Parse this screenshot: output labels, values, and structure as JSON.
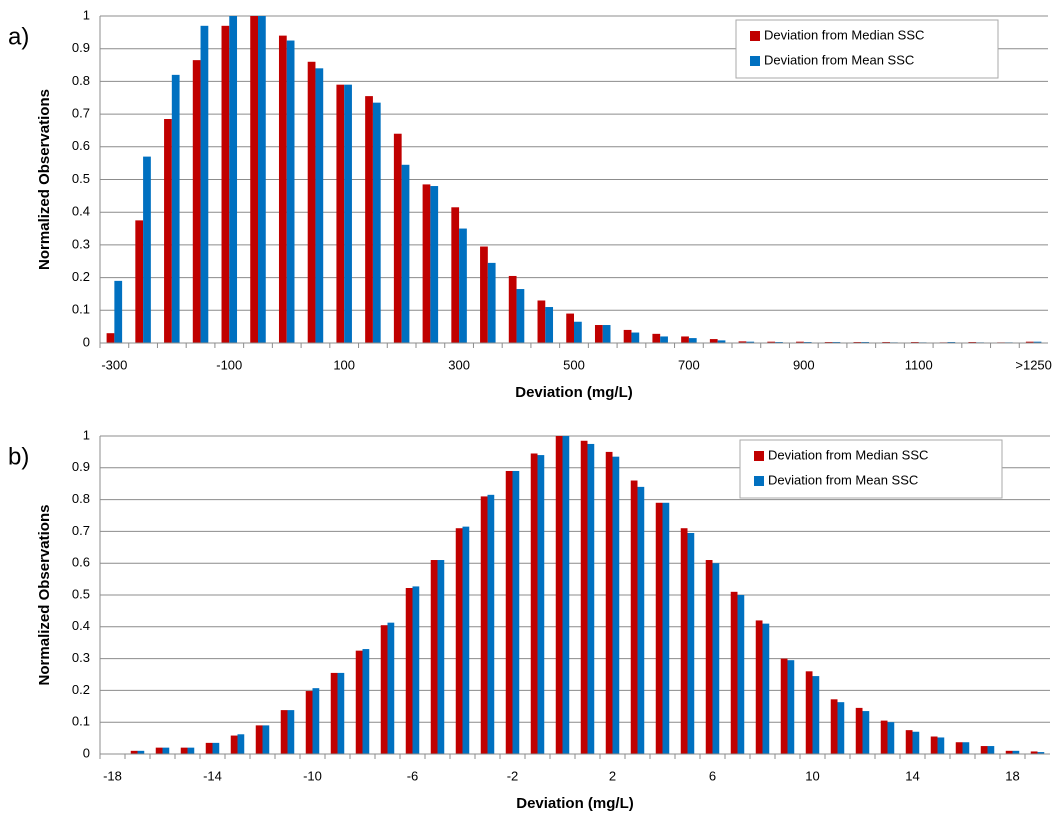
{
  "chart_data": [
    {
      "type": "bar",
      "panel_label": "a)",
      "x_label": "Deviation (mg/L)",
      "y_label": "Normalized Observations",
      "categories": [
        "-300",
        null,
        null,
        null,
        "-100",
        null,
        null,
        null,
        "100",
        null,
        null,
        null,
        "300",
        null,
        null,
        null,
        "500",
        null,
        null,
        null,
        "700",
        null,
        null,
        null,
        "900",
        null,
        null,
        null,
        "1100",
        null,
        null,
        null,
        ">1250"
      ],
      "series": [
        {
          "name": "Deviation from Median SSC",
          "color": "#c00000",
          "values": [
            0.03,
            0.375,
            0.685,
            0.865,
            0.97,
            1.0,
            0.94,
            0.86,
            0.79,
            0.755,
            0.64,
            0.485,
            0.415,
            0.295,
            0.205,
            0.13,
            0.09,
            0.055,
            0.04,
            0.028,
            0.02,
            0.012,
            0.005,
            0.004,
            0.004,
            0.003,
            0.003,
            0.003,
            0.003,
            0.002,
            0.003,
            0.002,
            0.004
          ]
        },
        {
          "name": "Deviation from Mean SSC",
          "color": "#0070c0",
          "values": [
            0.19,
            0.57,
            0.82,
            0.97,
            1.0,
            1.0,
            0.925,
            0.84,
            0.79,
            0.735,
            0.545,
            0.48,
            0.35,
            0.245,
            0.165,
            0.11,
            0.065,
            0.055,
            0.032,
            0.02,
            0.015,
            0.008,
            0.004,
            0.003,
            0.003,
            0.003,
            0.003,
            0.002,
            0.002,
            0.003,
            0.002,
            0.002,
            0.004
          ]
        }
      ],
      "ylim": [
        0,
        1
      ],
      "yticks": [
        0,
        0.1,
        0.2,
        0.3,
        0.4,
        0.5,
        0.6,
        0.7,
        0.8,
        0.9,
        1
      ],
      "grid": true,
      "legend": "top-right"
    },
    {
      "type": "bar",
      "panel_label": "b)",
      "x_label": "Deviation (mg/L)",
      "y_label": "Normalized Observations",
      "categories": [
        "-18",
        null,
        null,
        null,
        "-14",
        null,
        null,
        null,
        "-10",
        null,
        null,
        null,
        "-6",
        null,
        null,
        null,
        "-2",
        null,
        null,
        null,
        "2",
        null,
        null,
        null,
        "6",
        null,
        null,
        null,
        "10",
        null,
        null,
        null,
        "14",
        null,
        null,
        null,
        "18",
        null
      ],
      "series": [
        {
          "name": "Deviation from Median SSC",
          "color": "#c00000",
          "values": [
            0,
            0.01,
            0.02,
            0.02,
            0.035,
            0.058,
            0.09,
            0.138,
            0.198,
            0.255,
            0.325,
            0.405,
            0.522,
            0.61,
            0.71,
            0.81,
            0.89,
            0.945,
            1.0,
            0.985,
            0.95,
            0.86,
            0.79,
            0.71,
            0.61,
            0.51,
            0.42,
            0.3,
            0.26,
            0.172,
            0.145,
            0.105,
            0.075,
            0.055,
            0.037,
            0.025,
            0.01,
            0.008
          ]
        },
        {
          "name": "Deviation from Mean SSC",
          "color": "#0070c0",
          "values": [
            0,
            0.01,
            0.02,
            0.02,
            0.035,
            0.062,
            0.09,
            0.138,
            0.207,
            0.255,
            0.33,
            0.413,
            0.527,
            0.61,
            0.715,
            0.815,
            0.89,
            0.94,
            1.0,
            0.975,
            0.935,
            0.84,
            0.79,
            0.695,
            0.6,
            0.5,
            0.41,
            0.295,
            0.245,
            0.163,
            0.135,
            0.1,
            0.07,
            0.052,
            0.037,
            0.025,
            0.01,
            0.006
          ]
        }
      ],
      "ylim": [
        0,
        1
      ],
      "yticks": [
        0,
        0.1,
        0.2,
        0.3,
        0.4,
        0.5,
        0.6,
        0.7,
        0.8,
        0.9,
        1
      ],
      "grid": true,
      "legend": "top-right"
    }
  ]
}
